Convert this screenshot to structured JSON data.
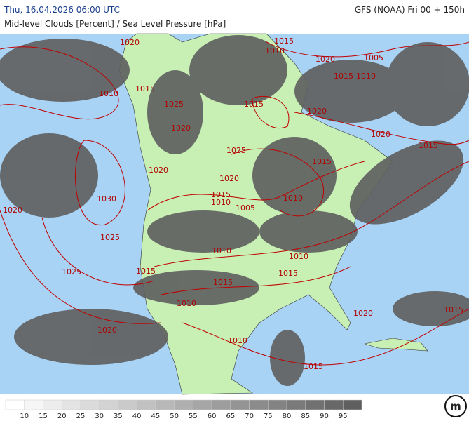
{
  "header": {
    "title": "Thu, 16.04.2026 06:00 UTC",
    "subtitle": "Mid-level Clouds [Percent] / Sea Level Pressure [hPa]",
    "model": "GFS (NOAA) Fri 00 + 150h"
  },
  "map": {
    "isobar_labels": [
      1020,
      1015,
      1010,
      1020,
      1005,
      1015,
      1010,
      1010,
      1015,
      1025,
      1015,
      1020,
      1020,
      1020,
      1015,
      1025,
      1015,
      1020,
      1020,
      1030,
      1015,
      1010,
      1010,
      1005,
      1020,
      1025,
      1010,
      1010,
      1025,
      1015,
      1015,
      1015,
      1010,
      1015,
      1020,
      1020,
      1010,
      1015
    ]
  },
  "colorbar": {
    "ticks": [
      10,
      15,
      20,
      25,
      30,
      35,
      40,
      45,
      50,
      55,
      60,
      65,
      70,
      75,
      80,
      85,
      90,
      95
    ]
  }
}
